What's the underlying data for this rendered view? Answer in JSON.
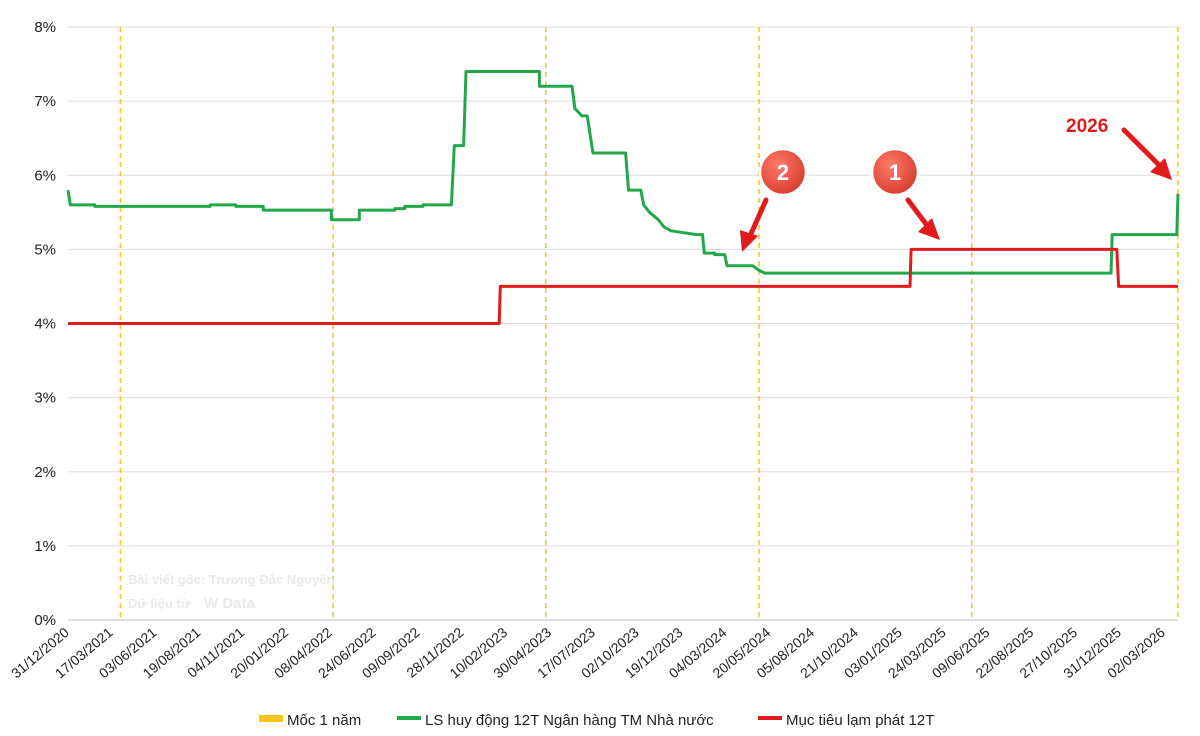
{
  "chart_data": {
    "type": "line",
    "y_ticks": [
      "0%",
      "1%",
      "2%",
      "3%",
      "4%",
      "5%",
      "6%",
      "7%",
      "8%"
    ],
    "ylim": [
      0,
      8
    ],
    "y_unit": "%",
    "x_tick_labels": [
      "31/12/2020",
      "17/03/2021",
      "03/06/2021",
      "19/08/2021",
      "04/11/2021",
      "20/01/2022",
      "08/04/2022",
      "24/06/2022",
      "09/09/2022",
      "28/11/2022",
      "10/02/2023",
      "30/04/2023",
      "17/07/2023",
      "02/10/2023",
      "19/12/2023",
      "04/03/2024",
      "20/05/2024",
      "05/08/2024",
      "21/10/2024",
      "03/01/2025",
      "24/03/2025",
      "09/06/2025",
      "22/08/2025",
      "27/10/2025",
      "31/12/2025",
      "02/03/2026"
    ],
    "xlim": [
      "31/12/2020",
      "20/03/2026"
    ],
    "grid": true,
    "legend_position": "bottom",
    "year_markers": {
      "name": "Mốc 1 năm",
      "dates": [
        "31/03/2021",
        "31/03/2022",
        "31/03/2023",
        "31/03/2024",
        "31/03/2025",
        "20/03/2026"
      ],
      "color": "#f5c518"
    },
    "series": [
      {
        "name": "LS huy động 12T Ngân hàng TM Nhà nước",
        "color": "#22a84a",
        "points": [
          [
            "31/12/2020",
            5.8
          ],
          [
            "04/01/2021",
            5.6
          ],
          [
            "15/02/2021",
            5.6
          ],
          [
            "15/02/2021",
            5.58
          ],
          [
            "01/09/2021",
            5.58
          ],
          [
            "01/09/2021",
            5.6
          ],
          [
            "15/10/2021",
            5.6
          ],
          [
            "15/10/2021",
            5.58
          ],
          [
            "01/12/2021",
            5.58
          ],
          [
            "01/12/2021",
            5.53
          ],
          [
            "28/03/2022",
            5.53
          ],
          [
            "28/03/2022",
            5.4
          ],
          [
            "15/05/2022",
            5.4
          ],
          [
            "15/05/2022",
            5.53
          ],
          [
            "15/07/2022",
            5.53
          ],
          [
            "15/07/2022",
            5.55
          ],
          [
            "01/08/2022",
            5.55
          ],
          [
            "01/08/2022",
            5.58
          ],
          [
            "01/09/2022",
            5.58
          ],
          [
            "01/09/2022",
            5.6
          ],
          [
            "20/10/2022",
            5.6
          ],
          [
            "25/10/2022",
            6.4
          ],
          [
            "10/11/2022",
            6.4
          ],
          [
            "14/11/2022",
            7.4
          ],
          [
            "20/03/2023",
            7.4
          ],
          [
            "20/03/2023",
            7.2
          ],
          [
            "15/05/2023",
            7.2
          ],
          [
            "20/05/2023",
            6.9
          ],
          [
            "01/06/2023",
            6.8
          ],
          [
            "10/06/2023",
            6.8
          ],
          [
            "20/06/2023",
            6.3
          ],
          [
            "15/08/2023",
            6.3
          ],
          [
            "20/08/2023",
            5.8
          ],
          [
            "10/09/2023",
            5.8
          ],
          [
            "15/09/2023",
            5.6
          ],
          [
            "25/09/2023",
            5.5
          ],
          [
            "10/10/2023",
            5.4
          ],
          [
            "20/10/2023",
            5.3
          ],
          [
            "01/11/2023",
            5.25
          ],
          [
            "15/12/2023",
            5.2
          ],
          [
            "25/12/2023",
            5.2
          ],
          [
            "28/12/2023",
            4.95
          ],
          [
            "15/01/2024",
            4.95
          ],
          [
            "15/01/2024",
            4.93
          ],
          [
            "01/02/2024",
            4.93
          ],
          [
            "05/02/2024",
            4.78
          ],
          [
            "20/03/2024",
            4.78
          ],
          [
            "30/03/2024",
            4.72
          ],
          [
            "10/04/2024",
            4.68
          ],
          [
            "25/11/2025",
            4.68
          ],
          [
            "27/11/2025",
            5.2
          ],
          [
            "18/03/2026",
            5.2
          ],
          [
            "20/03/2026",
            5.75
          ]
        ]
      },
      {
        "name": "Mục tiêu lạm phát 12T",
        "color": "#e11b1b",
        "points": [
          [
            "31/12/2020",
            4.0
          ],
          [
            "10/01/2023",
            4.0
          ],
          [
            "12/01/2023",
            4.5
          ],
          [
            "15/12/2024",
            4.5
          ],
          [
            "17/12/2024",
            5.0
          ],
          [
            "05/12/2025",
            5.0
          ],
          [
            "08/12/2025",
            4.5
          ],
          [
            "20/03/2026",
            4.5
          ]
        ]
      }
    ],
    "annotations": [
      {
        "label": "2",
        "type": "numbered-callout"
      },
      {
        "label": "1",
        "type": "numbered-callout"
      },
      {
        "label": "2026",
        "type": "year-callout"
      }
    ]
  },
  "watermark": {
    "line1": "Bài viết gốc: Trương Đắc Nguyên",
    "line2": "Dữ liệu từ",
    "brand": "W Data"
  }
}
